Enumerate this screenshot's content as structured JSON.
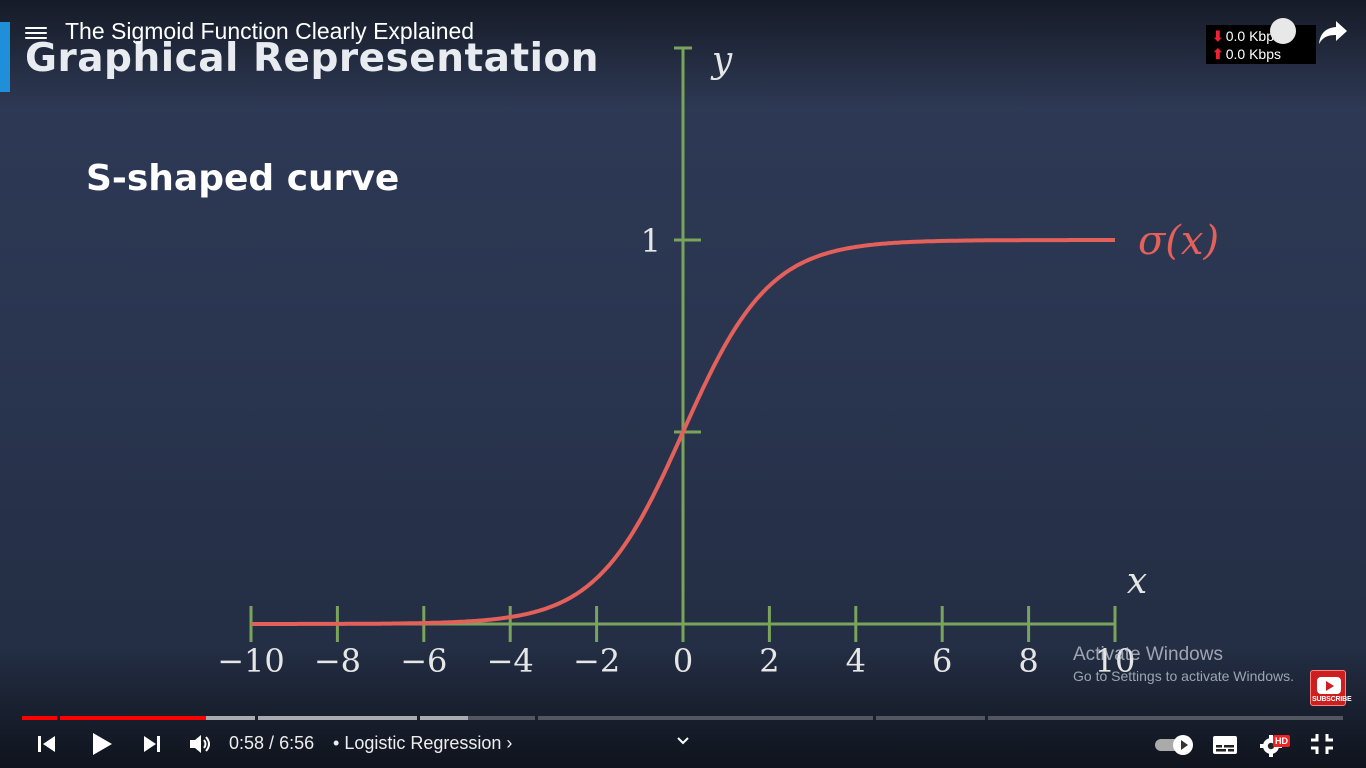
{
  "video": {
    "title": "The Sigmoid Function Clearly Explained"
  },
  "slide": {
    "heading": "Graphical Representation",
    "subheading": "S-shaped curve"
  },
  "network_speed": {
    "down": "0.0 Kbps",
    "up": "0.0 Kbps",
    "down_arrow": "⬇",
    "up_arrow": "⬆"
  },
  "player": {
    "time_current": "0:58",
    "time_separator": " / ",
    "time_total": "6:56",
    "chapter_prefix": "• ",
    "chapter": "Logistic Regression",
    "chapter_arrow": "›",
    "played_fraction": 0.139,
    "buffered_fraction": 0.337,
    "hd_badge": "HD",
    "autoplay_on": true
  },
  "watermark": {
    "line1": "Activate Windows",
    "line2": "Go to Settings to activate Windows."
  },
  "subscribe": {
    "label": "SUBSCRIBE"
  },
  "colors": {
    "axis": "#7aa35c",
    "curve": "#e4605a",
    "progress_played": "#ff0000",
    "background": "#2a3550"
  },
  "chart_data": {
    "type": "line",
    "function": "sigmoid",
    "series": [
      {
        "name": "σ(x)",
        "x": [
          -10,
          -8,
          -6,
          -4,
          -3,
          -2,
          -1,
          0,
          1,
          2,
          3,
          4,
          6,
          8,
          10
        ],
        "y": [
          4.54e-05,
          0.000335,
          0.00247,
          0.018,
          0.0474,
          0.119,
          0.269,
          0.5,
          0.731,
          0.881,
          0.953,
          0.982,
          0.9975,
          0.99966,
          0.99995
        ]
      }
    ],
    "xlabel": "x",
    "ylabel": "y",
    "xlim": [
      -10,
      10
    ],
    "ylim": [
      0,
      1
    ],
    "x_ticks": [
      -10,
      -8,
      -6,
      -4,
      -2,
      0,
      2,
      4,
      6,
      8,
      10
    ],
    "x_tick_labels": [
      "−10",
      "−8",
      "−6",
      "−4",
      "−2",
      "0",
      "2",
      "4",
      "6",
      "8",
      "10"
    ],
    "y_ticks": [
      0.5,
      1
    ],
    "y_tick_labels": [
      "",
      "1"
    ],
    "grid": false
  }
}
